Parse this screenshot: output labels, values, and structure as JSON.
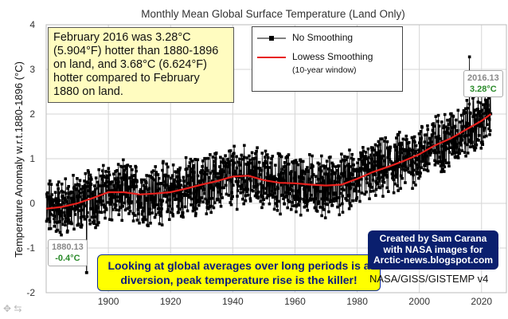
{
  "chart_data": {
    "type": "line",
    "title": "Monthly Mean Global Surface Temperature (Land Only)",
    "ylabel": "Temperature Anomaly w.r.t.1880-1896 (°C)",
    "xlabel": "",
    "xlim": [
      1880,
      2028
    ],
    "ylim": [
      -2,
      4
    ],
    "x_ticks": [
      "1900",
      "1920",
      "1940",
      "1960",
      "1980",
      "2000",
      "2020"
    ],
    "y_ticks": [
      "-2",
      "-1",
      "0",
      "1",
      "2",
      "3",
      "4"
    ],
    "series": [
      {
        "name": "No Smoothing",
        "color": "#000000",
        "note": "monthly values, trend anchors (year, value) with monthly variability ~±0.5°C",
        "anchors": [
          [
            1880.13,
            -0.4
          ],
          [
            1890,
            -0.3
          ],
          [
            1900,
            0.1
          ],
          [
            1910,
            -0.05
          ],
          [
            1920,
            0.1
          ],
          [
            1930,
            0.2
          ],
          [
            1940,
            0.45
          ],
          [
            1944,
            0.65
          ],
          [
            1950,
            0.15
          ],
          [
            1960,
            0.3
          ],
          [
            1970,
            0.25
          ],
          [
            1980,
            0.55
          ],
          [
            1990,
            0.9
          ],
          [
            2000,
            1.1
          ],
          [
            2010,
            1.5
          ],
          [
            2016.13,
            3.28
          ],
          [
            2020,
            2.0
          ],
          [
            2023,
            1.9
          ]
        ]
      },
      {
        "name": "Lowess Smoothing",
        "subtitle": "(10-year window)",
        "color": "#e8201c",
        "x": [
          1880,
          1885,
          1890,
          1895,
          1900,
          1905,
          1910,
          1915,
          1920,
          1925,
          1930,
          1935,
          1940,
          1945,
          1950,
          1955,
          1960,
          1965,
          1970,
          1975,
          1980,
          1985,
          1990,
          1995,
          2000,
          2005,
          2010,
          2015,
          2020,
          2023
        ],
        "y": [
          -0.12,
          -0.08,
          0.0,
          0.12,
          0.25,
          0.25,
          0.2,
          0.22,
          0.25,
          0.33,
          0.42,
          0.5,
          0.6,
          0.62,
          0.52,
          0.46,
          0.45,
          0.42,
          0.4,
          0.42,
          0.55,
          0.7,
          0.82,
          0.95,
          1.1,
          1.3,
          1.45,
          1.65,
          1.85,
          2.0
        ]
      }
    ],
    "callouts": [
      {
        "year": "1880.13",
        "value": "-0.4°C"
      },
      {
        "year": "2016.13",
        "value": "3.28°C"
      }
    ]
  },
  "annotation": "February 2016 was 3.28°C (5.904°F) hotter than 1880-1896 on land, and 3.68°C (6.624°F) hotter compared to February 1880 on land.",
  "legend": {
    "no_smoothing": "No Smoothing",
    "lowess": "Lowess Smoothing",
    "lowess_sub": "(10-year window)"
  },
  "callout_text": "Looking at global averages over long periods is a diversion, peak temperature rise is the killer!",
  "credit": {
    "line1": "Created by Sam Carana",
    "line2": "with NASA images for",
    "line3": "Arctic-news.blogspot.com"
  },
  "source": "NASA/GISS/GISTEMP v4"
}
